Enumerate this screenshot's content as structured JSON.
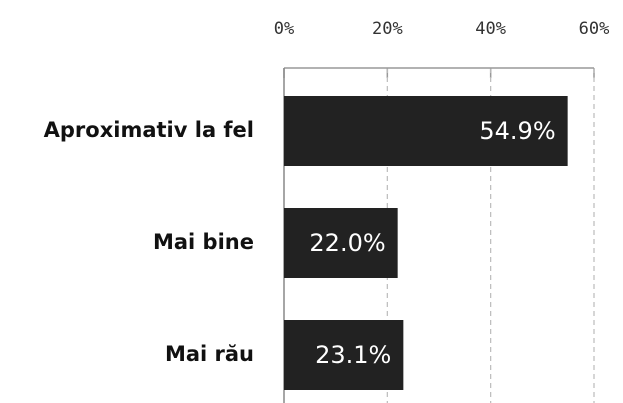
{
  "chart_data": {
    "type": "bar",
    "orientation": "horizontal",
    "categories": [
      "Aproximativ la fel",
      "Mai bine",
      "Mai rău"
    ],
    "values": [
      54.9,
      22.0,
      23.1
    ],
    "value_labels": [
      "54.9%",
      "22.0%",
      "23.1%"
    ],
    "color": "#222222",
    "xlim": [
      0,
      60
    ],
    "xticks": [
      {
        "value": 0,
        "label": "0%"
      },
      {
        "value": 20,
        "label": "20%"
      },
      {
        "value": 40,
        "label": "40%"
      },
      {
        "value": 60,
        "label": "60%"
      }
    ],
    "grid": true
  }
}
